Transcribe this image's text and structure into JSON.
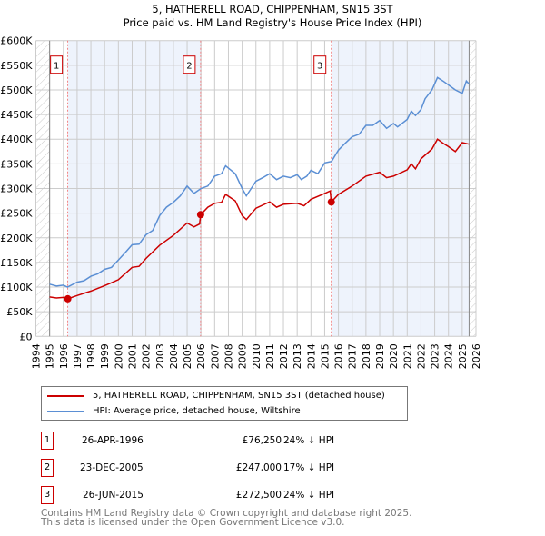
{
  "chart_data": {
    "type": "line",
    "title": "5, HATHERELL ROAD, CHIPPENHAM, SN15 3ST",
    "subtitle": "Price paid vs. HM Land Registry's House Price Index (HPI)",
    "xlim": [
      1994,
      2026
    ],
    "ylim": [
      0,
      600000
    ],
    "x_ticks": [
      "1994",
      "1995",
      "1996",
      "1997",
      "1998",
      "1999",
      "2000",
      "2001",
      "2002",
      "2003",
      "2004",
      "2005",
      "2006",
      "2007",
      "2008",
      "2009",
      "2010",
      "2011",
      "2012",
      "2013",
      "2014",
      "2015",
      "2016",
      "2017",
      "2018",
      "2019",
      "2020",
      "2021",
      "2022",
      "2023",
      "2024",
      "2025",
      "2026"
    ],
    "y_ticks": [
      {
        "v": 0,
        "label": "£0"
      },
      {
        "v": 50000,
        "label": "£50K"
      },
      {
        "v": 100000,
        "label": "£100K"
      },
      {
        "v": 150000,
        "label": "£150K"
      },
      {
        "v": 200000,
        "label": "£200K"
      },
      {
        "v": 250000,
        "label": "£250K"
      },
      {
        "v": 300000,
        "label": "£300K"
      },
      {
        "v": 350000,
        "label": "£350K"
      },
      {
        "v": 400000,
        "label": "£400K"
      },
      {
        "v": 450000,
        "label": "£450K"
      },
      {
        "v": 500000,
        "label": "£500K"
      },
      {
        "v": 550000,
        "label": "£550K"
      },
      {
        "v": 600000,
        "label": "£600K"
      }
    ],
    "grid": true,
    "data_range": [
      1995,
      2025.5
    ],
    "series": [
      {
        "name": "5, HATHERELL ROAD, CHIPPENHAM, SN15 3ST (detached house)",
        "color": "#cc0000",
        "x": [
          1995,
          1995.5,
          1996,
          1996.32,
          1997,
          1998,
          1999,
          2000,
          2001,
          2001.5,
          2002,
          2003,
          2004,
          2005,
          2005.5,
          2005.9,
          2005.98,
          2006.5,
          2007,
          2007.5,
          2007.8,
          2008.5,
          2009,
          2009.3,
          2010,
          2011,
          2011.5,
          2012,
          2013,
          2013.5,
          2014,
          2015,
          2015.4,
          2015.48,
          2016,
          2017,
          2018,
          2019,
          2019.5,
          2020,
          2021,
          2021.3,
          2021.6,
          2022,
          2022.8,
          2023.2,
          2023.6,
          2024,
          2024.5,
          2025,
          2025.5
        ],
        "y": [
          80000,
          78000,
          79000,
          76250,
          83000,
          92000,
          103000,
          115000,
          140000,
          142000,
          158000,
          185000,
          205000,
          230000,
          222000,
          228000,
          247000,
          262000,
          270000,
          272000,
          288000,
          275000,
          245000,
          237000,
          260000,
          273000,
          262000,
          268000,
          270000,
          265000,
          278000,
          290000,
          295000,
          272500,
          288000,
          305000,
          325000,
          333000,
          322000,
          325000,
          338000,
          350000,
          340000,
          360000,
          380000,
          400000,
          392000,
          385000,
          375000,
          393000,
          390000
        ]
      },
      {
        "name": "HPI: Average price, detached house, Wiltshire",
        "color": "#5b8fd4",
        "x": [
          1995,
          1995.5,
          1996,
          1996.3,
          1997,
          1997.5,
          1998,
          1998.5,
          1999,
          1999.5,
          2000,
          2000.5,
          2001,
          2001.5,
          2002,
          2002.5,
          2003,
          2003.5,
          2004,
          2004.5,
          2005,
          2005.5,
          2006,
          2006.5,
          2007,
          2007.5,
          2007.8,
          2008.5,
          2009,
          2009.3,
          2010,
          2010.5,
          2011,
          2011.5,
          2012,
          2012.5,
          2013,
          2013.3,
          2013.7,
          2014,
          2014.5,
          2015,
          2015.5,
          2016,
          2016.5,
          2017,
          2017.5,
          2018,
          2018.5,
          2019,
          2019.5,
          2020,
          2020.3,
          2021,
          2021.3,
          2021.6,
          2022,
          2022.3,
          2022.8,
          2023.2,
          2023.6,
          2024,
          2024.5,
          2025,
          2025.3,
          2025.5
        ],
        "y": [
          106000,
          102000,
          104000,
          100000,
          110000,
          113000,
          122000,
          127000,
          136000,
          140000,
          155000,
          170000,
          186000,
          187000,
          206000,
          215000,
          245000,
          262000,
          272000,
          285000,
          305000,
          290000,
          300000,
          305000,
          325000,
          330000,
          346000,
          330000,
          300000,
          285000,
          315000,
          322000,
          330000,
          318000,
          325000,
          322000,
          328000,
          318000,
          325000,
          337000,
          330000,
          352000,
          355000,
          378000,
          392000,
          405000,
          410000,
          428000,
          428000,
          438000,
          422000,
          432000,
          425000,
          440000,
          457000,
          448000,
          460000,
          482000,
          500000,
          525000,
          518000,
          510000,
          500000,
          493000,
          518000,
          512000
        ]
      }
    ],
    "sales": [
      {
        "label": "1",
        "x": 1996.32,
        "y": 76250,
        "date": "26-APR-1996",
        "price": "£76,250",
        "hpi": "24% ↓ HPI"
      },
      {
        "label": "2",
        "x": 2005.98,
        "y": 247000,
        "date": "23-DEC-2005",
        "price": "£247,000",
        "hpi": "17% ↓ HPI"
      },
      {
        "label": "3",
        "x": 2015.48,
        "y": 272500,
        "date": "26-JUN-2015",
        "price": "£272,500",
        "hpi": "24% ↓ HPI"
      }
    ]
  },
  "footer": [
    "Contains HM Land Registry data © Crown copyright and database right 2025.",
    "This data is licensed under the Open Government Licence v3.0."
  ]
}
